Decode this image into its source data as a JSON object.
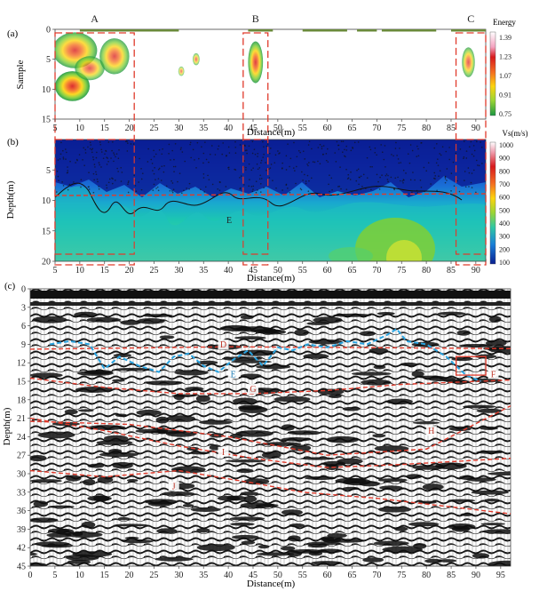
{
  "chart_data": [
    {
      "panel": "(a)",
      "type": "heatmap",
      "ylabel": "Sample",
      "xlabel": "Distance(m)",
      "xlim": [
        5,
        92
      ],
      "ylim": [
        15,
        0
      ],
      "xticks": [
        5,
        10,
        15,
        20,
        25,
        30,
        35,
        40,
        45,
        50,
        55,
        60,
        65,
        70,
        75,
        80,
        85,
        90
      ],
      "yticks": [
        0,
        5,
        10,
        15
      ],
      "colorbar": {
        "title": "Energy",
        "ticks": [
          1.39,
          1.23,
          1.07,
          0.91,
          0.75
        ]
      },
      "region_labels": [
        "A",
        "B",
        "C"
      ],
      "anomaly_zones": [
        {
          "label": "A",
          "x": [
            5,
            21
          ],
          "y": [
            0,
            15
          ]
        },
        {
          "label": "B",
          "x": [
            43,
            48
          ],
          "y": [
            0,
            15
          ]
        },
        {
          "label": "C",
          "x": [
            86,
            92
          ],
          "y": [
            0,
            15
          ]
        }
      ],
      "blobs": [
        {
          "cx": 9,
          "cy": 3.5,
          "rx": 4.5,
          "ry": 3.0,
          "level": 1.05
        },
        {
          "cx": 8.5,
          "cy": 9.5,
          "rx": 3.5,
          "ry": 2.5,
          "level": 1.2
        },
        {
          "cx": 12,
          "cy": 6.5,
          "rx": 3,
          "ry": 2,
          "level": 0.95
        },
        {
          "cx": 17,
          "cy": 4.5,
          "rx": 3,
          "ry": 3,
          "level": 1.0
        },
        {
          "cx": 30.5,
          "cy": 7,
          "rx": 0.6,
          "ry": 0.8,
          "level": 0.8
        },
        {
          "cx": 33.5,
          "cy": 5,
          "rx": 0.7,
          "ry": 1.0,
          "level": 0.85
        },
        {
          "cx": 45.5,
          "cy": 5.5,
          "rx": 1.5,
          "ry": 3.5,
          "level": 1.1
        },
        {
          "cx": 88.5,
          "cy": 5.5,
          "rx": 1.3,
          "ry": 2.5,
          "level": 0.95
        }
      ]
    },
    {
      "panel": "(b)",
      "type": "heatmap",
      "ylabel": "Depth(m)",
      "xlabel": "Distance(m)",
      "xlim": [
        5,
        92
      ],
      "ylim": [
        20,
        0
      ],
      "xticks": [
        5,
        10,
        15,
        20,
        25,
        30,
        35,
        40,
        45,
        50,
        55,
        60,
        65,
        70,
        75,
        80,
        85,
        90
      ],
      "yticks": [
        5,
        10,
        15,
        20
      ],
      "colorbar": {
        "title": "Vs(m/s)",
        "ticks": [
          1000,
          900,
          800,
          700,
          600,
          500,
          400,
          300,
          200,
          100
        ]
      },
      "region_labels": [
        "E"
      ],
      "dashed_line_depth": 9
    },
    {
      "panel": "(c)",
      "type": "line",
      "ylabel": "Depth(m)",
      "xlabel": "Distance(m)",
      "xlim": [
        0,
        97
      ],
      "ylim": [
        45,
        0
      ],
      "xticks": [
        0,
        5,
        10,
        15,
        20,
        25,
        30,
        35,
        40,
        45,
        50,
        55,
        60,
        65,
        70,
        75,
        80,
        85,
        90,
        95
      ],
      "yticks": [
        0,
        3,
        6,
        9,
        12,
        15,
        18,
        21,
        24,
        27,
        30,
        33,
        36,
        39,
        42,
        45
      ],
      "series": [
        {
          "name": "D",
          "x": [
            0,
            20,
            40,
            60,
            80,
            97
          ],
          "y": [
            9.8,
            9.6,
            9.4,
            9.5,
            9.6,
            9.7
          ]
        },
        {
          "name": "G",
          "x": [
            0,
            15,
            30,
            45,
            60,
            75,
            97
          ],
          "y": [
            14.5,
            16.0,
            17.0,
            17.0,
            16.5,
            15.5,
            14.8
          ]
        },
        {
          "name": "H",
          "x": [
            0,
            20,
            40,
            60,
            80,
            97
          ],
          "y": [
            21.5,
            22.0,
            24.0,
            27.0,
            26.0,
            19.0
          ]
        },
        {
          "name": "I",
          "x": [
            0,
            15,
            30,
            45,
            60,
            75,
            97
          ],
          "y": [
            21.0,
            23.0,
            25.5,
            27.5,
            29.0,
            28.5,
            27.5
          ]
        },
        {
          "name": "J",
          "x": [
            0,
            15,
            30,
            45,
            55,
            70,
            97
          ],
          "y": [
            29.5,
            30.5,
            29.5,
            31.5,
            33.0,
            34.0,
            36.5
          ]
        }
      ],
      "dashed_curve_E": {
        "x": [
          4,
          8,
          12,
          15,
          18,
          22,
          26,
          29,
          32,
          35,
          38,
          41,
          44,
          47,
          50,
          53,
          56,
          60,
          64,
          68,
          72,
          74,
          76,
          80,
          84,
          88,
          91
        ],
        "y": [
          9,
          8.5,
          9,
          13,
          11,
          12.5,
          13.5,
          11,
          10.5,
          12.5,
          13.5,
          11.5,
          10,
          12.5,
          9.5,
          10,
          9,
          9.5,
          8.5,
          9,
          7.5,
          6.5,
          8.5,
          9,
          11,
          14,
          15
        ]
      },
      "box_F": {
        "x": [
          86,
          92
        ],
        "y": [
          11,
          14
        ]
      },
      "region_labels": [
        "E",
        "F"
      ]
    }
  ]
}
